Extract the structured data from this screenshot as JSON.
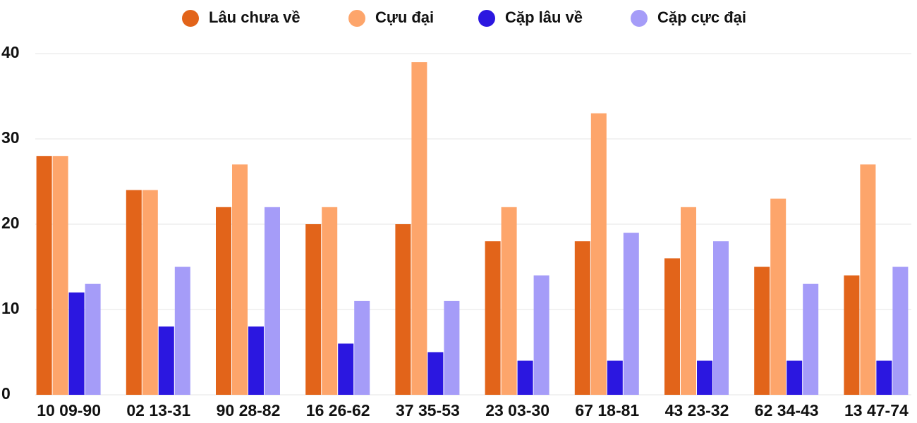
{
  "chart_data": {
    "type": "bar",
    "categories": [
      "10 09-90",
      "02 13-31",
      "90 28-82",
      "16 26-62",
      "37 35-53",
      "23 03-30",
      "67 18-81",
      "43 23-32",
      "62 34-43",
      "13 47-74"
    ],
    "series": [
      {
        "name": "Lâu chưa về",
        "color": "#e2641a",
        "values": [
          28,
          24,
          22,
          20,
          20,
          18,
          18,
          16,
          15,
          14
        ]
      },
      {
        "name": "Cựu đại",
        "color": "#fda56b",
        "values": [
          28,
          24,
          27,
          22,
          39,
          22,
          33,
          22,
          23,
          27
        ]
      },
      {
        "name": "Cặp lâu về",
        "color": "#2b17e0",
        "values": [
          12,
          8,
          8,
          6,
          5,
          4,
          4,
          4,
          4,
          4
        ]
      },
      {
        "name": "Cặp cực đại",
        "color": "#a59cf8",
        "values": [
          13,
          15,
          22,
          11,
          11,
          14,
          19,
          18,
          13,
          15
        ]
      }
    ],
    "ylim": [
      0,
      40
    ],
    "yticks": [
      0,
      10,
      20,
      30,
      40
    ],
    "grid": true,
    "legend": "top"
  }
}
